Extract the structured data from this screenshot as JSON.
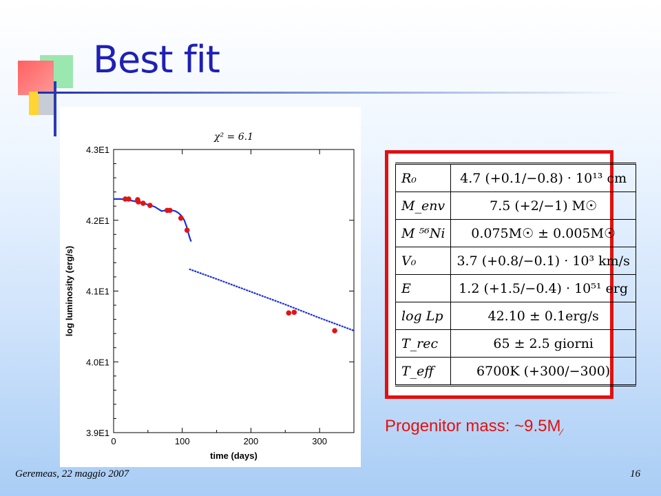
{
  "slide": {
    "title": "Best fit",
    "progenitor_text": "Progenitor mass: ~9.5M",
    "footer_left": "Geremeas, 22 maggio 2007",
    "page_number": "16"
  },
  "table": {
    "rows": [
      {
        "symbol": "R₀",
        "value": "4.7 (+0.1/−0.8) · 10¹³ cm"
      },
      {
        "symbol": "M_env",
        "value": "7.5 (+2/−1) M☉"
      },
      {
        "symbol": "M ⁵⁶Ni",
        "value": "0.075M☉ ± 0.005M☉"
      },
      {
        "symbol": "V₀",
        "value": "3.7 (+0.8/−0.1) · 10³ km/s"
      },
      {
        "symbol": "E",
        "value": "1.2 (+1.5/−0.4) · 10⁵¹ erg"
      },
      {
        "symbol": "log Lp",
        "value": "42.10 ± 0.1erg/s"
      },
      {
        "symbol": "T_rec",
        "value": "65 ± 2.5 giorni"
      },
      {
        "symbol": "T_eff",
        "value": "6700K (+300/−300)"
      }
    ]
  },
  "chart_data": {
    "type": "scatter",
    "title": "χ² = 6.1",
    "xlabel": "time (days)",
    "ylabel": "log luminosity (erg/s)",
    "xlim": [
      0,
      350
    ],
    "ylim": [
      39,
      43
    ],
    "x_ticks": [
      0,
      100,
      200,
      300
    ],
    "y_ticks": [
      39,
      40,
      41,
      42,
      43
    ],
    "y_tick_labels": [
      "3.9E1",
      "4.0E1",
      "4.1E1",
      "4.2E1",
      "4.3E1"
    ],
    "colors": {
      "model": "#1a2fd6",
      "observed": "#e01515"
    },
    "series": [
      {
        "type": "line",
        "x": [
          0,
          10,
          20,
          30,
          40,
          50,
          60,
          70,
          80,
          90,
          95,
          100,
          103,
          106,
          108,
          110,
          111,
          112,
          113
        ],
        "y": [
          42.3,
          42.3,
          42.29,
          42.27,
          42.25,
          42.22,
          42.19,
          42.13,
          42.15,
          42.13,
          42.1,
          42.05,
          42.0,
          41.92,
          41.85,
          41.78,
          41.75,
          41.72,
          41.7
        ]
      },
      {
        "type": "line",
        "x": [
          110,
          150,
          200,
          250,
          300,
          350
        ],
        "y": [
          41.31,
          41.17,
          40.99,
          40.81,
          40.62,
          40.44
        ]
      },
      {
        "type": "scatter",
        "x": [
          17,
          22,
          35,
          36,
          43,
          53,
          78,
          82,
          98,
          107,
          255,
          263,
          322
        ],
        "y": [
          42.3,
          42.3,
          42.29,
          42.26,
          42.24,
          42.21,
          42.14,
          42.14,
          42.03,
          41.86,
          40.69,
          40.7,
          40.44
        ]
      }
    ]
  }
}
